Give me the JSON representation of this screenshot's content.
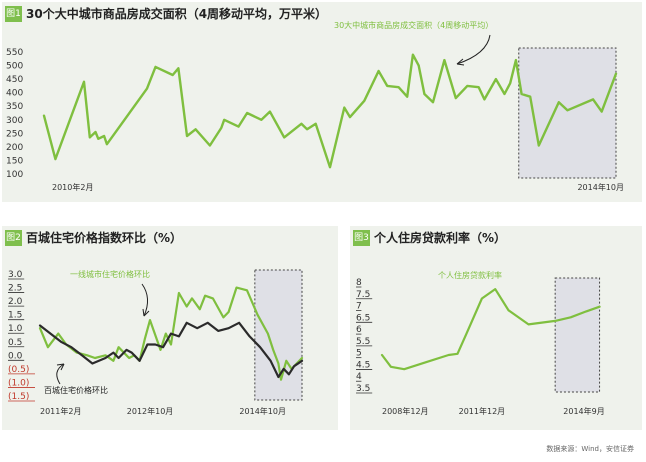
{
  "colors": {
    "green": "#7fbf3f",
    "dark": "#2b2b2b",
    "red": "#c0392b",
    "panel_bg": "#eff2ec",
    "badge": "#7fbf4d",
    "highlight_fill": "#dfe0e6"
  },
  "source_note": "数据来源：Wind，安信证券",
  "chart_data": [
    {
      "type": "line",
      "badge": "图1",
      "title": "30个大中城市商品房成交面积（4周移动平均，万平米）",
      "annotation": "30大中城市商品房成交面积（4周移动平均）",
      "yticks": [
        100,
        150,
        200,
        250,
        300,
        350,
        400,
        450,
        500,
        550
      ],
      "ylim": [
        100,
        550
      ],
      "x_labels": [
        {
          "t": 0.0,
          "label": "2010年2月"
        },
        {
          "t": 1.0,
          "label": "2014年10月"
        }
      ],
      "xlim": [
        0,
        1
      ],
      "highlight_x": [
        0.83,
        1.0
      ],
      "series": [
        {
          "color_key": "green",
          "x": [
            0.0,
            0.02,
            0.07,
            0.08,
            0.09,
            0.095,
            0.105,
            0.11,
            0.18,
            0.195,
            0.225,
            0.235,
            0.25,
            0.265,
            0.29,
            0.31,
            0.315,
            0.34,
            0.355,
            0.38,
            0.395,
            0.42,
            0.45,
            0.46,
            0.475,
            0.5,
            0.525,
            0.535,
            0.56,
            0.585,
            0.6,
            0.62,
            0.635,
            0.645,
            0.655,
            0.665,
            0.68,
            0.7,
            0.72,
            0.74,
            0.76,
            0.77,
            0.79,
            0.805,
            0.815,
            0.825,
            0.835,
            0.85,
            0.865,
            0.9,
            0.915,
            0.96,
            0.975,
            1.0
          ],
          "y": [
            315,
            155,
            440,
            235,
            255,
            230,
            240,
            210,
            415,
            495,
            465,
            490,
            240,
            265,
            205,
            270,
            300,
            275,
            325,
            300,
            330,
            235,
            285,
            265,
            285,
            125,
            345,
            310,
            370,
            480,
            425,
            420,
            385,
            540,
            500,
            395,
            365,
            520,
            380,
            425,
            420,
            375,
            450,
            395,
            435,
            520,
            395,
            385,
            205,
            365,
            335,
            375,
            330,
            470
          ]
        }
      ]
    },
    {
      "type": "line",
      "badge": "图2",
      "title": "百城住宅价格指数环比（%）",
      "annotations": [
        {
          "text": "一线城市住宅价格环比"
        },
        {
          "text": "百城住宅价格环比"
        }
      ],
      "yticks": [
        -1.5,
        -1.0,
        -0.5,
        0.0,
        0.5,
        1.0,
        1.5,
        2.0,
        2.5,
        3.0
      ],
      "ytick_labels": [
        "(1.5)",
        "(1.0)",
        "(0.5)",
        "0.0",
        "0.5",
        "1.0",
        "1.5",
        "2.0",
        "2.5",
        "3.0"
      ],
      "ylim": [
        -1.5,
        3.0
      ],
      "x_labels": [
        {
          "t": 0.0,
          "label": "2011年2月"
        },
        {
          "t": 0.42,
          "label": "2012年10月"
        },
        {
          "t": 0.85,
          "label": "2014年10月"
        }
      ],
      "xlim": [
        0,
        1
      ],
      "highlight_x": [
        0.82,
        1.0
      ],
      "series": [
        {
          "name": "一线城市住宅价格环比",
          "color_key": "green",
          "x": [
            0.0,
            0.03,
            0.07,
            0.1,
            0.14,
            0.18,
            0.21,
            0.25,
            0.28,
            0.3,
            0.34,
            0.36,
            0.38,
            0.4,
            0.42,
            0.46,
            0.48,
            0.5,
            0.53,
            0.56,
            0.58,
            0.61,
            0.63,
            0.66,
            0.7,
            0.72,
            0.75,
            0.79,
            0.83,
            0.87,
            0.89,
            0.91,
            0.92,
            0.94,
            0.96,
            1.0
          ],
          "y": [
            1.0,
            0.3,
            0.8,
            0.4,
            0.1,
            0.0,
            -0.1,
            0.0,
            -0.2,
            0.3,
            -0.1,
            0.0,
            -0.2,
            0.6,
            1.3,
            0.2,
            0.8,
            0.4,
            2.3,
            1.8,
            2.1,
            1.7,
            2.2,
            2.1,
            1.4,
            1.6,
            2.5,
            2.4,
            1.5,
            0.8,
            0.2,
            -0.3,
            -0.9,
            -0.2,
            -0.5,
            -0.1
          ]
        },
        {
          "name": "百城住宅价格环比",
          "color_key": "dark",
          "x": [
            0.0,
            0.04,
            0.08,
            0.12,
            0.16,
            0.2,
            0.25,
            0.28,
            0.3,
            0.33,
            0.35,
            0.38,
            0.41,
            0.44,
            0.47,
            0.5,
            0.53,
            0.56,
            0.6,
            0.64,
            0.68,
            0.72,
            0.76,
            0.8,
            0.84,
            0.88,
            0.91,
            0.93,
            0.95,
            0.97,
            1.0
          ],
          "y": [
            1.1,
            0.8,
            0.5,
            0.3,
            0.0,
            -0.3,
            -0.1,
            0.1,
            -0.1,
            0.2,
            0.1,
            -0.2,
            0.4,
            0.4,
            0.3,
            0.8,
            0.7,
            1.2,
            1.0,
            1.2,
            0.9,
            1.0,
            1.2,
            0.7,
            0.3,
            -0.2,
            -0.8,
            -0.5,
            -0.7,
            -0.4,
            -0.2
          ]
        }
      ]
    },
    {
      "type": "line",
      "badge": "图3",
      "title": "个人住房贷款利率（%）",
      "annotation": "个人住房贷款利率",
      "yticks": [
        3.5,
        4.0,
        4.5,
        5.0,
        5.5,
        6.0,
        6.5,
        7.0,
        7.5,
        8.0
      ],
      "ylim": [
        3.5,
        8.0
      ],
      "x_labels": [
        {
          "t": 0.0,
          "label": "2008年12月"
        },
        {
          "t": 0.45,
          "label": "2011年12月"
        },
        {
          "t": 0.91,
          "label": "2014年9月"
        }
      ],
      "xlim": [
        0,
        1
      ],
      "highlight_x": [
        0.78,
        0.98
      ],
      "series": [
        {
          "name": "个人住房贷款利率",
          "color_key": "green",
          "x": [
            0.0,
            0.04,
            0.1,
            0.2,
            0.3,
            0.34,
            0.38,
            0.45,
            0.51,
            0.57,
            0.66,
            0.78,
            0.85,
            0.92,
            0.98
          ],
          "y": [
            4.9,
            4.4,
            4.3,
            4.6,
            4.9,
            4.95,
            5.8,
            7.3,
            7.7,
            6.8,
            6.2,
            6.35,
            6.5,
            6.75,
            6.95
          ]
        }
      ]
    }
  ]
}
